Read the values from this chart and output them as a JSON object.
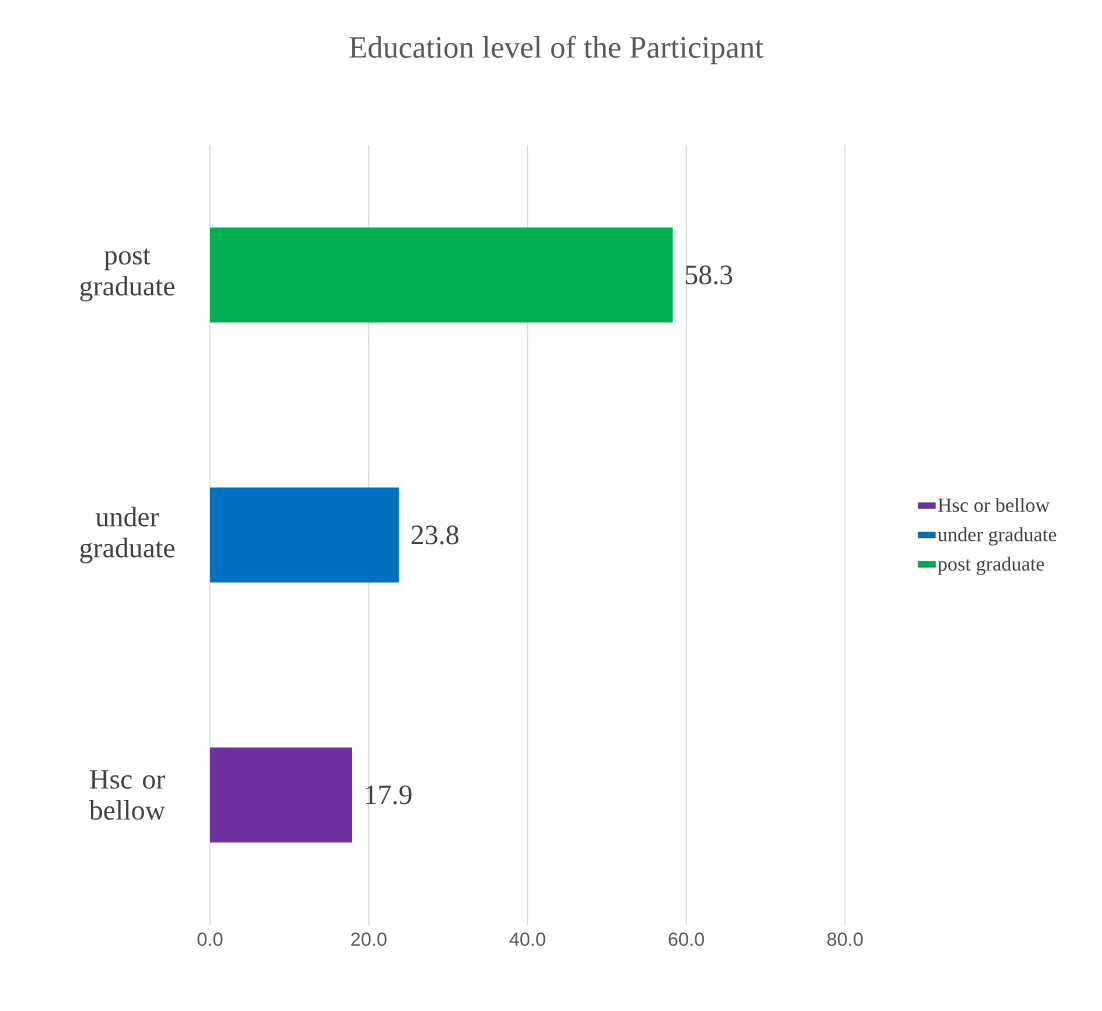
{
  "chart_data": {
    "type": "bar",
    "orientation": "horizontal",
    "title": "Education level of the Participant",
    "categories": [
      "post graduate",
      "under graduate",
      "Hsc or bellow"
    ],
    "series": [
      {
        "name": "Hsc or bellow",
        "color": "#7030a0",
        "values": [
          null,
          null,
          17.9
        ]
      },
      {
        "name": "under graduate",
        "color": "#0070c0",
        "values": [
          null,
          23.8,
          null
        ]
      },
      {
        "name": "post graduate",
        "color": "#00b050",
        "values": [
          58.3,
          null,
          null
        ]
      }
    ],
    "xlim": [
      0,
      80
    ],
    "xticks": [
      {
        "value": 0,
        "label": "0.0"
      },
      {
        "value": 20,
        "label": "20.0"
      },
      {
        "value": 40,
        "label": "40.0"
      },
      {
        "value": 60,
        "label": "60.0"
      },
      {
        "value": 80,
        "label": "80.0"
      }
    ],
    "grid": "x",
    "legend": "right",
    "data_labels": true
  }
}
